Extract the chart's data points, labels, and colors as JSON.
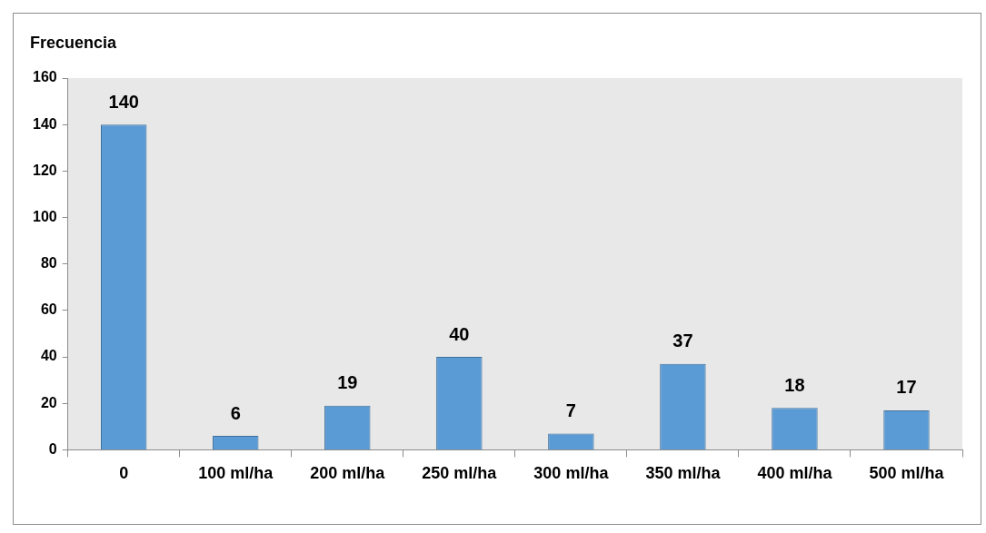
{
  "chart_data": {
    "type": "bar",
    "ylabel": "Frecuencia",
    "categories": [
      "0",
      "100 ml/ha",
      "200 ml/ha",
      "250 ml/ha",
      "300 ml/ha",
      "350 ml/ha",
      "400 ml/ha",
      "500 ml/ha"
    ],
    "values": [
      140,
      6,
      19,
      40,
      7,
      37,
      18,
      17
    ],
    "color": "#5b9bd5",
    "ylim": [
      0,
      160
    ],
    "yticks": [
      0,
      20,
      40,
      60,
      80,
      100,
      120,
      140,
      160
    ],
    "data_labels": true,
    "grid": false,
    "legend": false
  }
}
